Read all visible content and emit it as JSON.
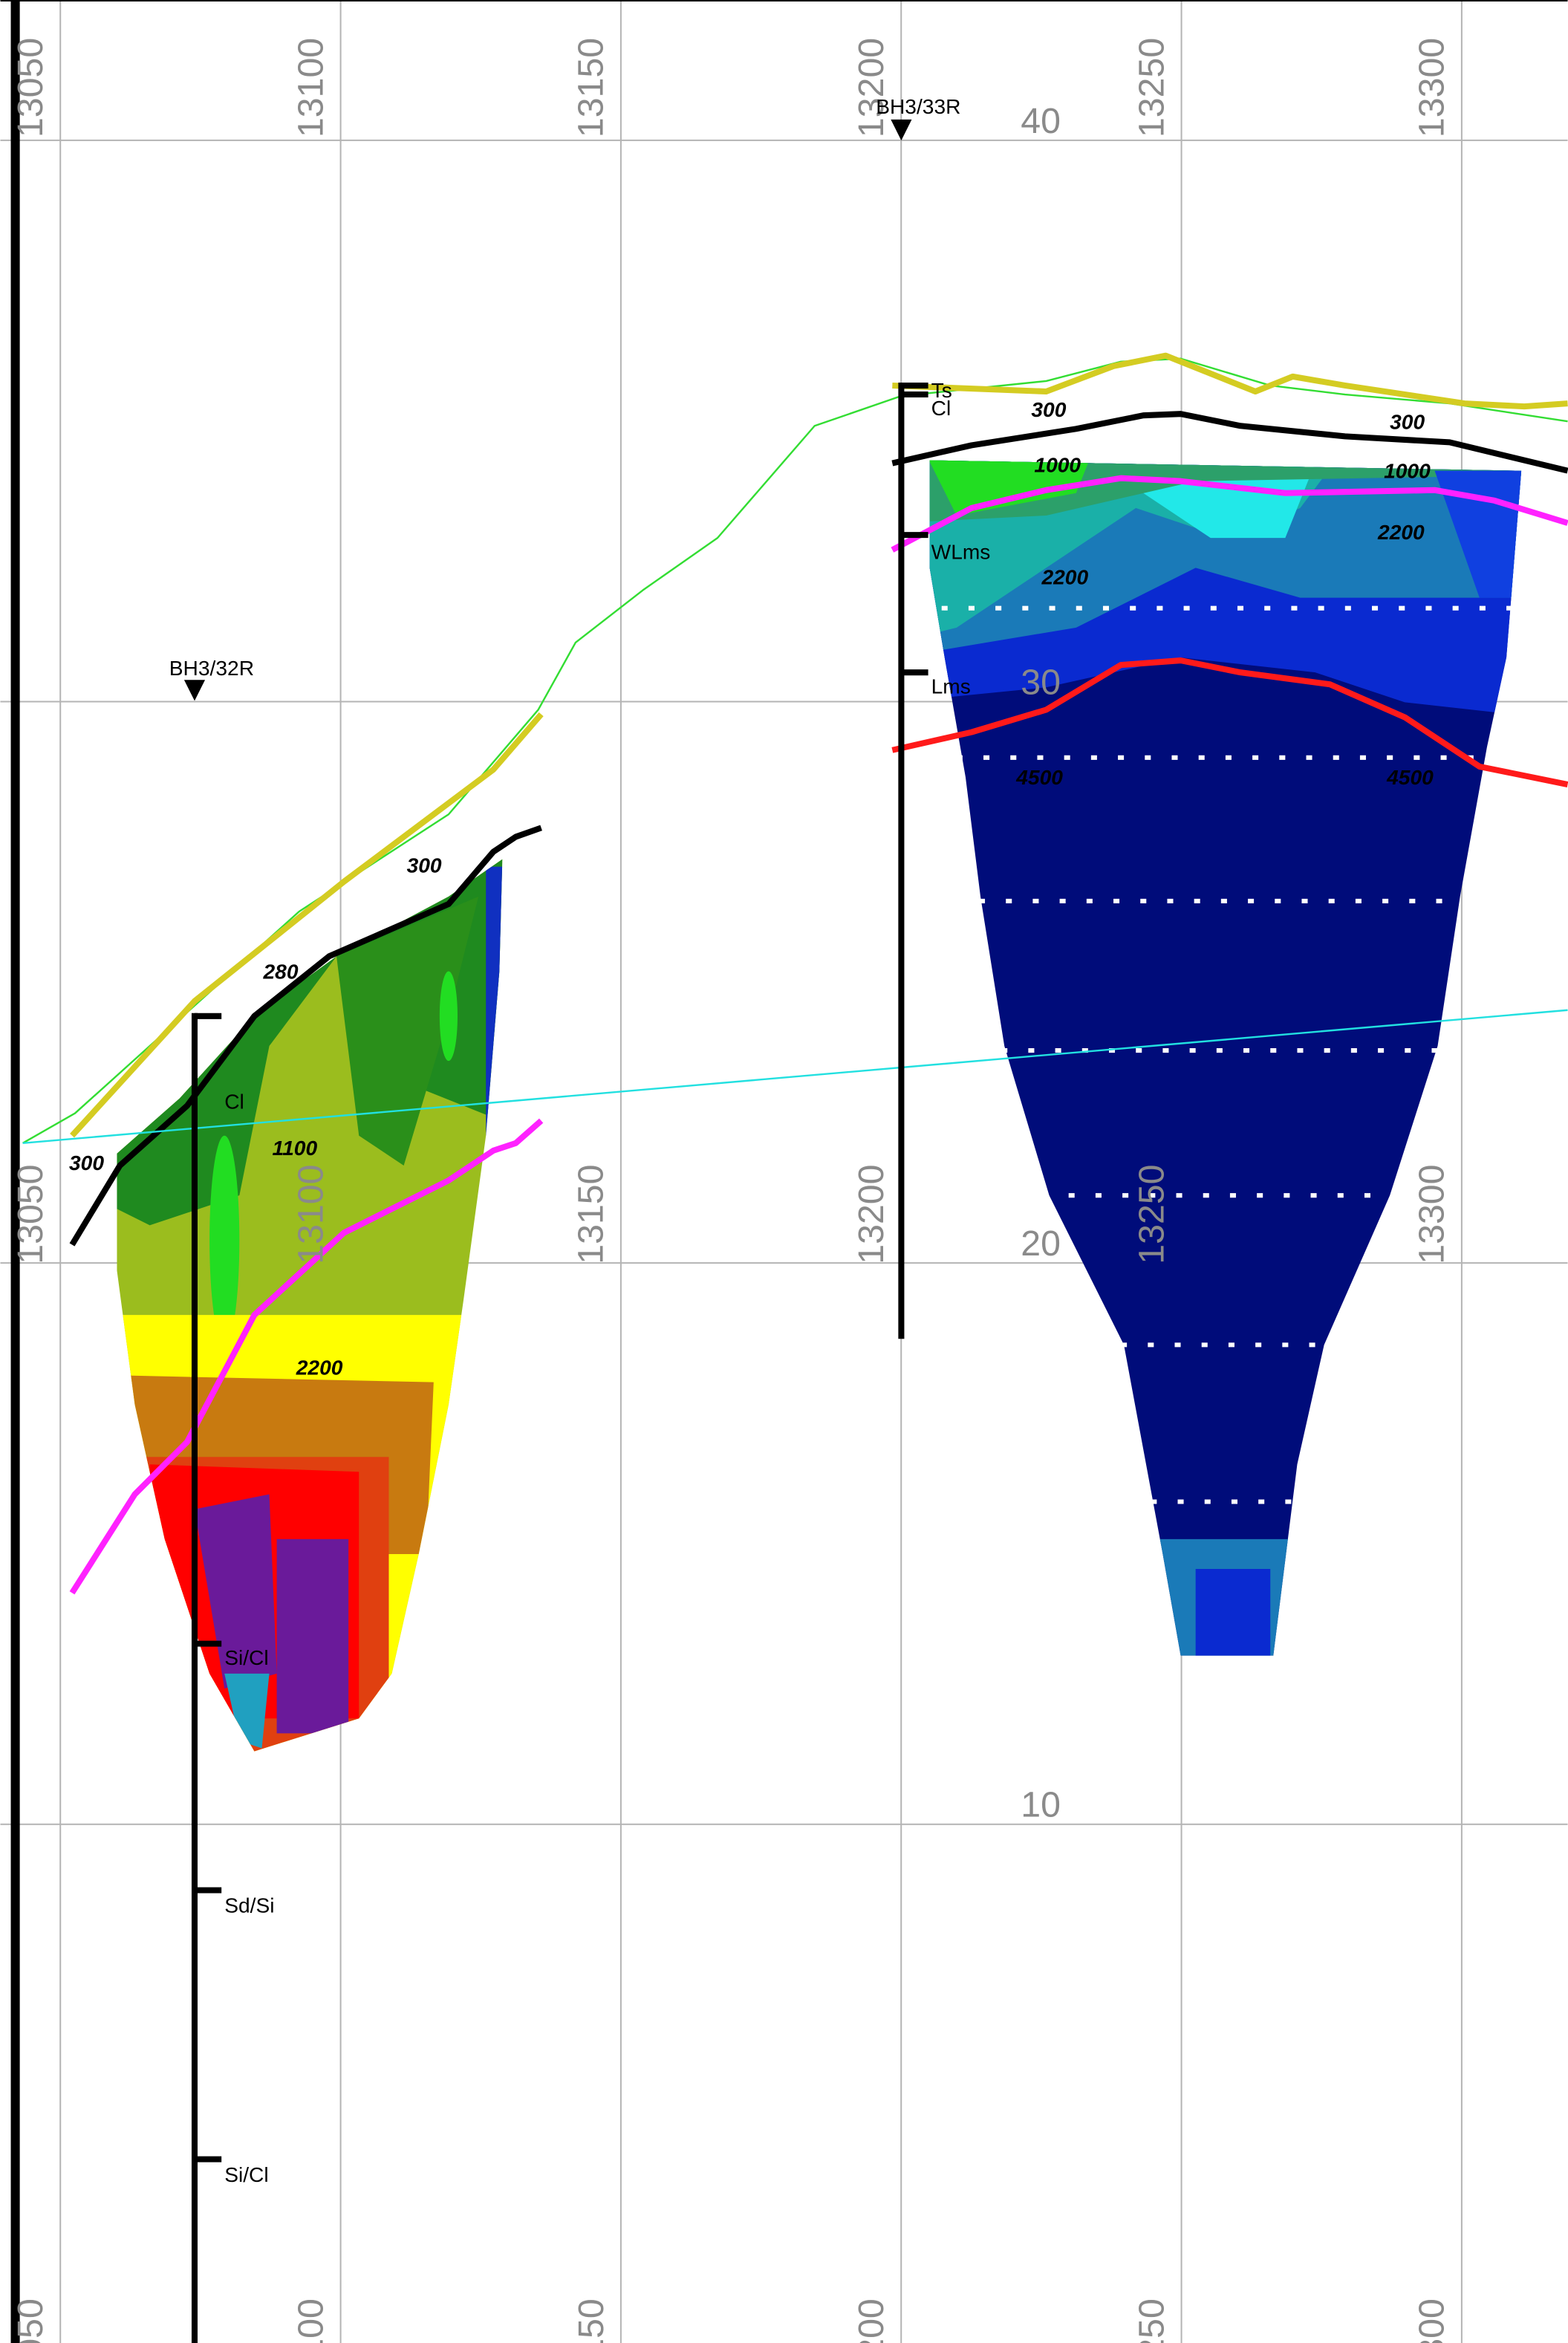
{
  "chart_data": {
    "type": "section",
    "xlim": [
      13039.3,
      13318.9
    ],
    "ylim": [
      0.76,
      42.5
    ],
    "xticks": [
      13050,
      13100,
      13150,
      13200,
      13250,
      13300
    ],
    "yticks": [
      10,
      20,
      30,
      40
    ],
    "grid": true,
    "boreholes": [
      {
        "name": "BH3/32R",
        "layers": [
          "Cl",
          "Si/Cl",
          "Sd/Si",
          "Si/Cl"
        ]
      },
      {
        "name": "BH3/33R",
        "layers": [
          "Ts",
          "Cl",
          "WLms",
          "Lms"
        ]
      }
    ],
    "velocity_labels": [
      300,
      1000,
      2200,
      4500,
      300,
      1000,
      2200,
      4500,
      300,
      280,
      1100,
      300,
      2200
    ]
  }
}
